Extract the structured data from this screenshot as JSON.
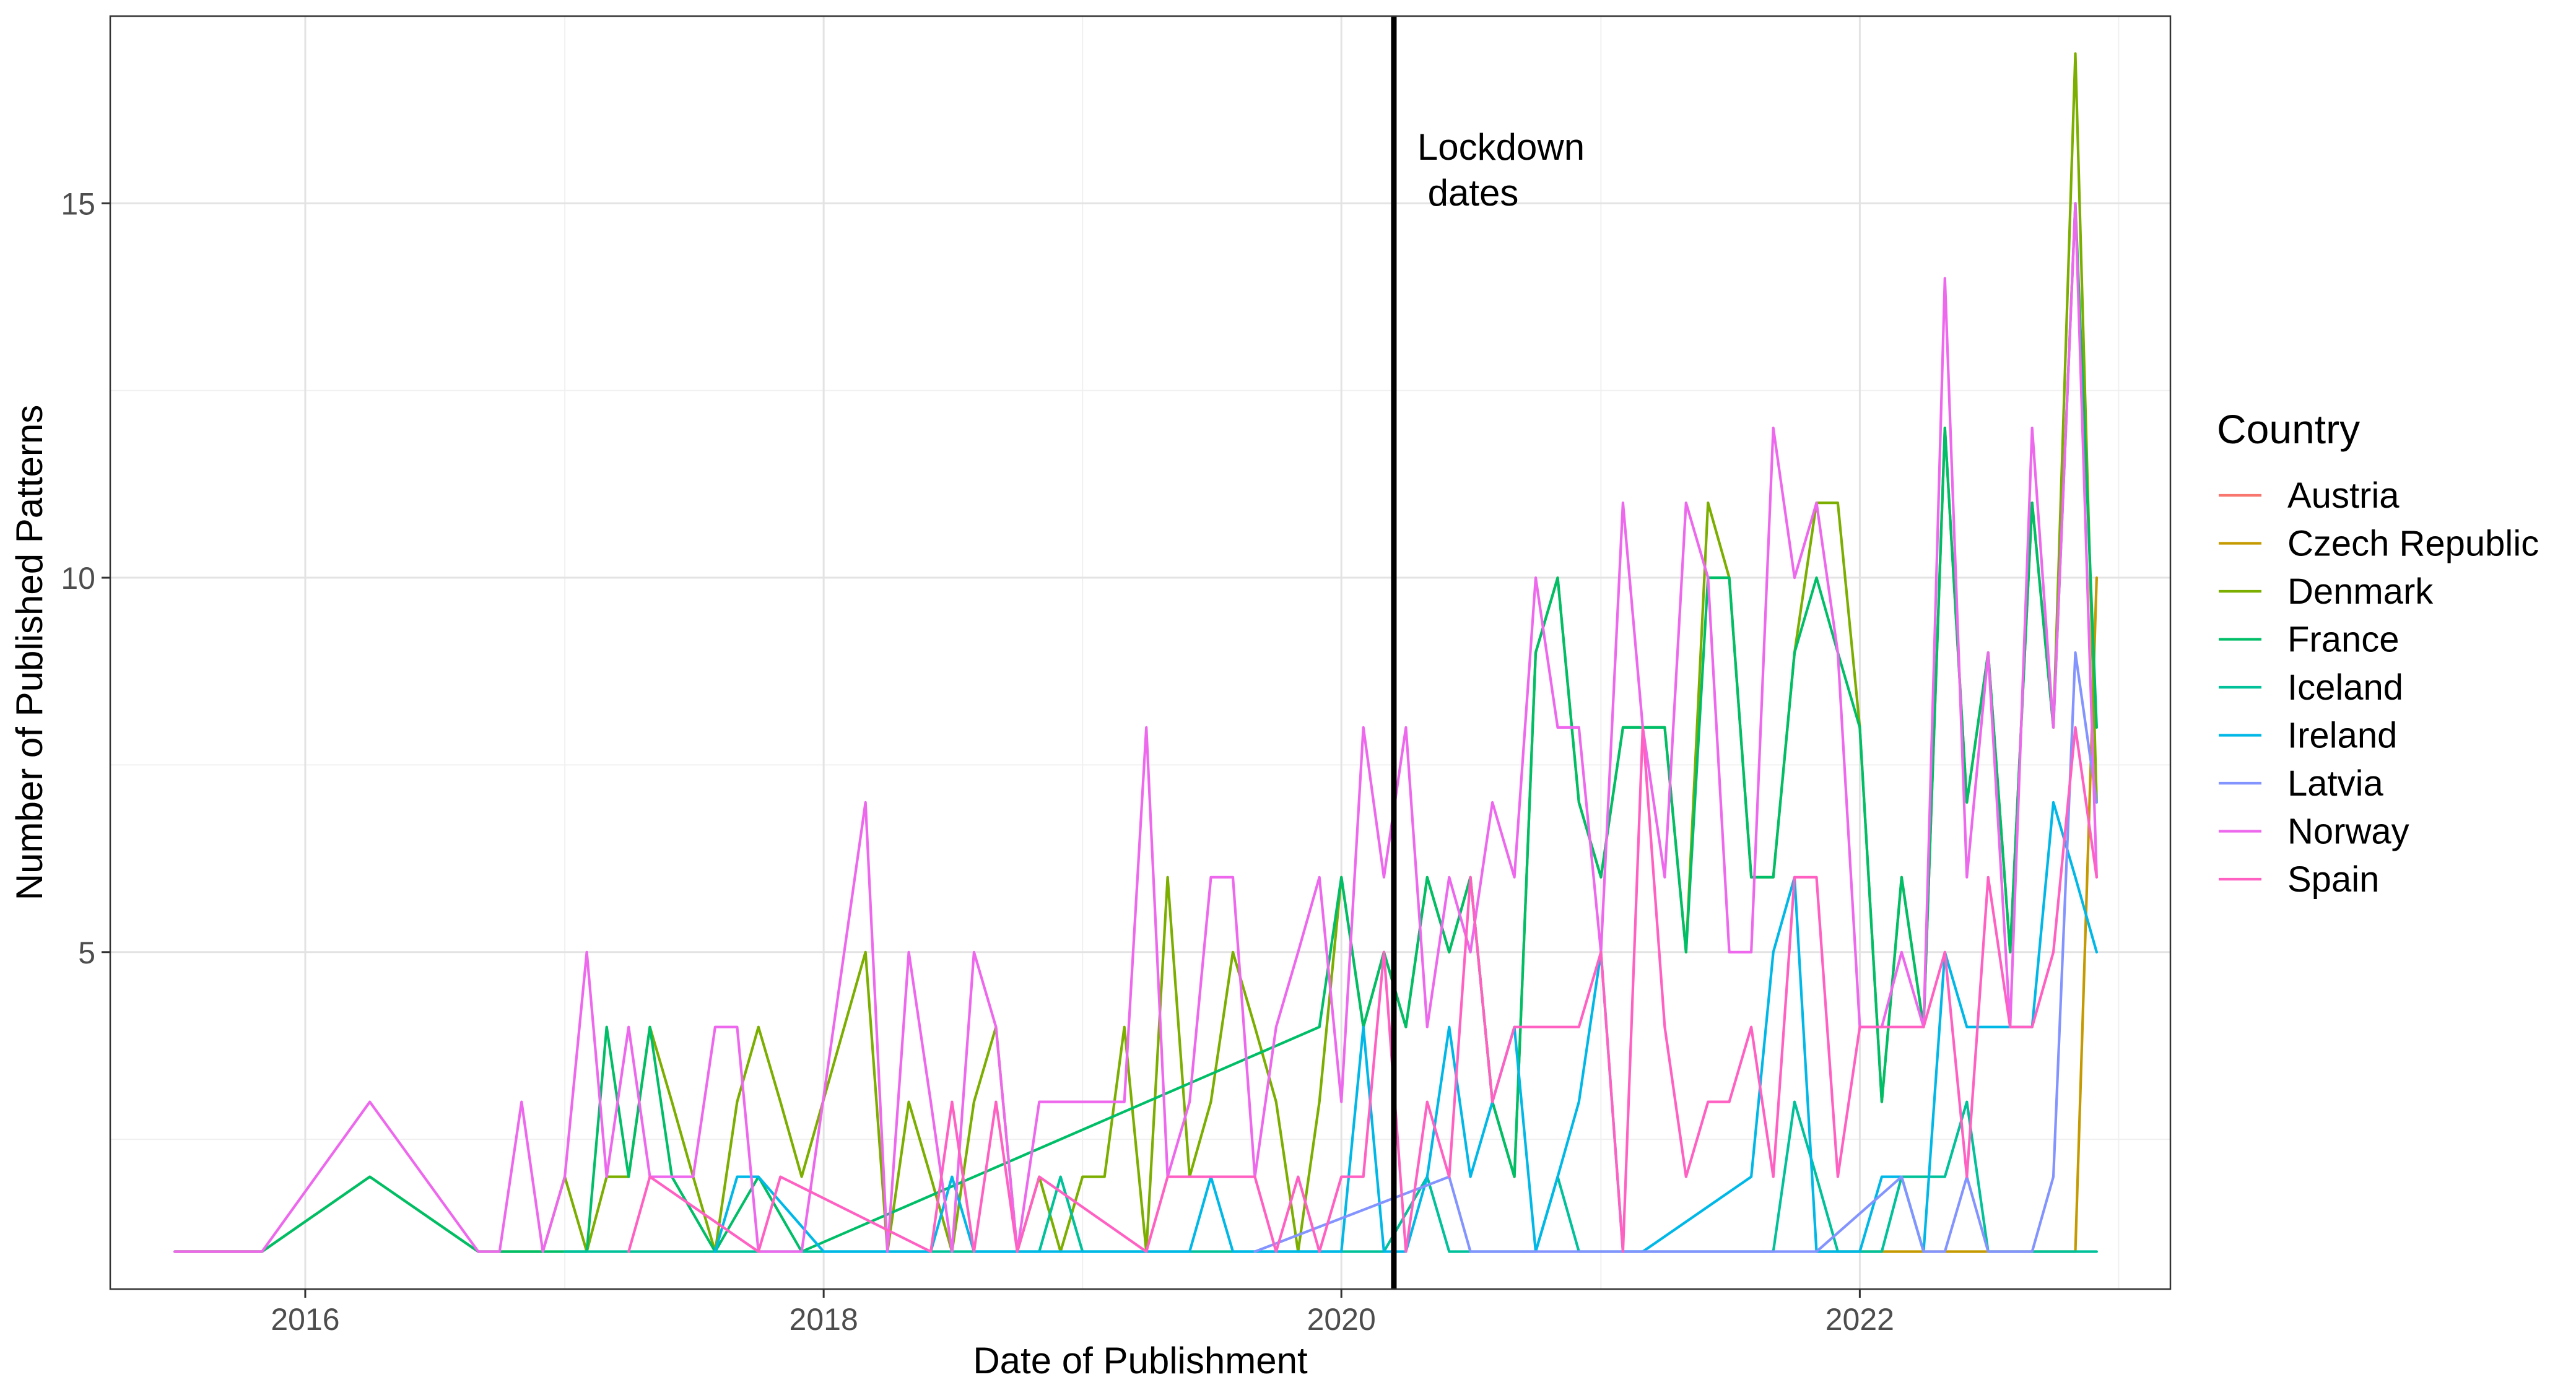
{
  "chart_data": {
    "type": "line",
    "title": "",
    "xlabel": "Date of Publishment",
    "ylabel": "Number of Published Patterns",
    "x_type": "date",
    "xlim": [
      "2015-04-01",
      "2023-03-15"
    ],
    "ylim": [
      0.5,
      17.5
    ],
    "x_ticks": [
      "2016",
      "2018",
      "2020",
      "2022"
    ],
    "y_ticks": [
      5,
      10,
      15
    ],
    "grid": true,
    "theme": "black-and-white",
    "legend": {
      "title": "Country",
      "position": "right"
    },
    "vline": {
      "x": "2020-03-15",
      "label": "Lockdown\n dates"
    },
    "series": [
      {
        "name": "Austria",
        "color": "#F8766D",
        "x": [
          "2015-07",
          "2015-08",
          "2015-09",
          "2015-10",
          "2015-11"
        ],
        "y": [
          1,
          1,
          1,
          1,
          1
        ]
      },
      {
        "name": "Czech Republic",
        "color": "#C49A00",
        "x": [
          "2021-11",
          "2021-12",
          "2022-01",
          "2022-02",
          "2022-03",
          "2022-04",
          "2022-05",
          "2022-06",
          "2022-07",
          "2022-08",
          "2022-09",
          "2022-10",
          "2022-11",
          "2022-12"
        ],
        "y": [
          1,
          1,
          1,
          1,
          1,
          1,
          1,
          1,
          1,
          1,
          1,
          1,
          1,
          10
        ]
      },
      {
        "name": "Denmark",
        "color": "#7CAE00",
        "x": [
          "2015-07",
          "2015-11",
          "2016-04",
          "2016-09",
          "2016-11",
          "2016-12",
          "2017-01",
          "2017-02",
          "2017-03",
          "2017-04",
          "2017-05",
          "2017-06",
          "2017-07",
          "2017-08",
          "2017-09",
          "2017-10",
          "2017-11",
          "2017-12",
          "2018-03",
          "2018-04",
          "2018-05",
          "2018-06",
          "2018-07",
          "2018-08",
          "2018-09",
          "2018-10",
          "2018-11",
          "2018-12",
          "2019-01",
          "2019-02",
          "2019-03",
          "2019-04",
          "2019-05",
          "2019-06",
          "2019-07",
          "2019-08",
          "2019-09",
          "2019-10",
          "2019-11",
          "2019-12",
          "2020-01",
          "2020-02",
          "2020-03",
          "2020-04",
          "2020-05",
          "2020-06",
          "2020-07",
          "2020-08",
          "2020-09",
          "2020-10",
          "2020-11",
          "2020-12",
          "2021-01",
          "2021-02",
          "2021-03",
          "2021-04",
          "2021-05",
          "2021-06",
          "2021-07",
          "2021-08",
          "2021-09",
          "2021-10",
          "2021-11",
          "2021-12",
          "2022-01",
          "2022-02",
          "2022-03",
          "2022-04",
          "2022-05",
          "2022-06",
          "2022-07",
          "2022-08",
          "2022-09",
          "2022-10",
          "2022-11",
          "2022-12"
        ],
        "y": [
          1,
          1,
          2,
          1,
          1,
          1,
          2,
          1,
          2,
          2,
          4,
          3,
          2,
          1,
          3,
          4,
          3,
          2,
          5,
          1,
          3,
          2,
          1,
          3,
          4,
          1,
          2,
          1,
          2,
          2,
          4,
          1,
          6,
          2,
          3,
          5,
          4,
          3,
          1,
          3,
          6,
          4,
          5,
          4,
          6,
          5,
          6,
          3,
          2,
          9,
          10,
          7,
          6,
          8,
          8,
          8,
          5,
          11,
          10,
          6,
          6,
          9,
          11,
          11,
          8,
          3,
          6,
          4,
          12,
          7,
          9,
          5,
          11,
          8,
          17,
          7
        ]
      },
      {
        "name": "France",
        "color": "#00BE67",
        "x": [
          "2015-07",
          "2015-11",
          "2016-04",
          "2016-09",
          "2016-11",
          "2017-02",
          "2017-03",
          "2017-04",
          "2017-05",
          "2017-06",
          "2017-08",
          "2017-10",
          "2017-12",
          "2019-12",
          "2020-01",
          "2020-02",
          "2020-03",
          "2020-04",
          "2020-05",
          "2020-06",
          "2020-07",
          "2020-08",
          "2020-09",
          "2020-10",
          "2020-11",
          "2020-12",
          "2021-01",
          "2021-02",
          "2021-03",
          "2021-04",
          "2021-05",
          "2021-06",
          "2021-07",
          "2021-08",
          "2021-09",
          "2021-10",
          "2021-11",
          "2021-12",
          "2022-01",
          "2022-02",
          "2022-03",
          "2022-04",
          "2022-05",
          "2022-06",
          "2022-07",
          "2022-08",
          "2022-09",
          "2022-10",
          "2022-11",
          "2022-12"
        ],
        "y": [
          1,
          1,
          2,
          1,
          1,
          1,
          4,
          2,
          4,
          2,
          1,
          2,
          1,
          4,
          6,
          4,
          5,
          4,
          6,
          5,
          6,
          3,
          2,
          9,
          10,
          7,
          6,
          8,
          8,
          8,
          5,
          10,
          10,
          6,
          6,
          9,
          10,
          9,
          8,
          3,
          6,
          4,
          12,
          7,
          9,
          5,
          11,
          8,
          15,
          8
        ]
      },
      {
        "name": "Iceland",
        "color": "#00C19A",
        "x": [
          "2017-01",
          "2018-10",
          "2018-11",
          "2018-12",
          "2019-01",
          "2019-02",
          "2019-03",
          "2020-03",
          "2020-05",
          "2020-06",
          "2020-07",
          "2020-08",
          "2020-09",
          "2020-10",
          "2020-11",
          "2020-12",
          "2021-01",
          "2021-09",
          "2021-10",
          "2021-11",
          "2021-12",
          "2022-01",
          "2022-02",
          "2022-03",
          "2022-04",
          "2022-05",
          "2022-06",
          "2022-07",
          "2022-08",
          "2022-09",
          "2022-10",
          "2022-11",
          "2022-12"
        ],
        "y": [
          1,
          1,
          1,
          2,
          1,
          1,
          1,
          1,
          2,
          1,
          1,
          1,
          1,
          1,
          2,
          1,
          1,
          1,
          3,
          2,
          1,
          1,
          1,
          2,
          2,
          2,
          3,
          1,
          1,
          1,
          1,
          1,
          1
        ]
      },
      {
        "name": "Ireland",
        "color": "#00B8E7",
        "x": [
          "2017-08",
          "2017-09",
          "2017-10",
          "2018-01",
          "2018-06",
          "2018-07",
          "2018-08",
          "2018-09",
          "2019-05",
          "2019-06",
          "2019-07",
          "2019-08",
          "2020-01",
          "2020-02",
          "2020-03",
          "2020-04",
          "2020-05",
          "2020-06",
          "2020-07",
          "2020-08",
          "2020-09",
          "2020-10",
          "2020-11",
          "2020-12",
          "2021-01",
          "2021-02",
          "2021-03",
          "2021-08",
          "2021-09",
          "2021-10",
          "2021-11",
          "2021-12",
          "2022-01",
          "2022-02",
          "2022-03",
          "2022-04",
          "2022-05",
          "2022-06",
          "2022-07",
          "2022-08",
          "2022-09",
          "2022-10",
          "2022-11",
          "2022-12"
        ],
        "y": [
          1,
          2,
          2,
          1,
          1,
          2,
          1,
          1,
          1,
          1,
          2,
          1,
          1,
          4,
          1,
          1,
          2,
          4,
          2,
          3,
          4,
          1,
          2,
          3,
          5,
          1,
          1,
          2,
          5,
          6,
          1,
          1,
          1,
          2,
          2,
          1,
          5,
          4,
          4,
          4,
          4,
          7,
          6,
          5
        ]
      },
      {
        "name": "Latvia",
        "color": "#8494FF",
        "x": [
          "2019-09",
          "2020-06",
          "2020-07",
          "2021-11",
          "2022-03",
          "2022-04",
          "2022-05",
          "2022-06",
          "2022-07",
          "2022-08",
          "2022-09",
          "2022-10",
          "2022-11",
          "2022-12"
        ],
        "y": [
          1,
          2,
          1,
          1,
          2,
          1,
          1,
          2,
          1,
          1,
          1,
          2,
          9,
          7
        ]
      },
      {
        "name": "Norway",
        "color": "#ED68ED",
        "x": [
          "2015-07",
          "2015-11",
          "2016-04",
          "2016-09",
          "2016-10",
          "2016-11",
          "2016-12",
          "2017-01",
          "2017-02",
          "2017-03",
          "2017-04",
          "2017-05",
          "2017-06",
          "2017-07",
          "2017-08",
          "2017-09",
          "2017-10",
          "2017-12",
          "2018-03",
          "2018-04",
          "2018-05",
          "2018-06",
          "2018-07",
          "2018-08",
          "2018-09",
          "2018-10",
          "2018-11",
          "2018-12",
          "2019-01",
          "2019-02",
          "2019-03",
          "2019-04",
          "2019-05",
          "2019-06",
          "2019-07",
          "2019-08",
          "2019-09",
          "2019-10",
          "2019-11",
          "2019-12",
          "2020-01",
          "2020-02",
          "2020-03",
          "2020-04",
          "2020-05",
          "2020-06",
          "2020-07",
          "2020-08",
          "2020-09",
          "2020-10",
          "2020-11",
          "2020-12",
          "2021-01",
          "2021-02",
          "2021-03",
          "2021-04",
          "2021-05",
          "2021-06",
          "2021-07",
          "2021-08",
          "2021-09",
          "2021-10",
          "2021-11",
          "2021-12",
          "2022-01",
          "2022-02",
          "2022-03",
          "2022-04",
          "2022-05",
          "2022-06",
          "2022-07",
          "2022-08",
          "2022-09",
          "2022-10",
          "2022-11",
          "2022-12"
        ],
        "y": [
          1,
          1,
          3,
          1,
          1,
          3,
          1,
          2,
          5,
          2,
          4,
          2,
          2,
          2,
          4,
          4,
          1,
          1,
          7,
          1,
          5,
          3,
          1,
          5,
          4,
          1,
          3,
          3,
          3,
          3,
          3,
          8,
          2,
          3,
          6,
          6,
          2,
          4,
          5,
          6,
          3,
          8,
          6,
          8,
          4,
          6,
          5,
          7,
          6,
          10,
          8,
          8,
          5,
          11,
          8,
          6,
          11,
          10,
          5,
          5,
          12,
          10,
          11,
          9,
          4,
          4,
          5,
          4,
          14,
          6,
          9,
          4,
          12,
          8,
          15,
          6
        ]
      },
      {
        "name": "Spain",
        "color": "#FF61C3",
        "x": [
          "2017-04",
          "2017-05",
          "2017-10",
          "2017-11",
          "2018-06",
          "2018-07",
          "2018-08",
          "2018-09",
          "2018-10",
          "2018-11",
          "2019-04",
          "2019-05",
          "2019-06",
          "2019-07",
          "2019-08",
          "2019-09",
          "2019-10",
          "2019-11",
          "2019-12",
          "2020-01",
          "2020-02",
          "2020-03",
          "2020-04",
          "2020-05",
          "2020-06",
          "2020-07",
          "2020-08",
          "2020-09",
          "2020-10",
          "2020-11",
          "2020-12",
          "2021-01",
          "2021-02",
          "2021-03",
          "2021-04",
          "2021-05",
          "2021-06",
          "2021-07",
          "2021-08",
          "2021-09",
          "2021-10",
          "2021-11",
          "2021-12",
          "2022-01",
          "2022-02",
          "2022-03",
          "2022-04",
          "2022-05",
          "2022-06",
          "2022-07",
          "2022-08",
          "2022-09",
          "2022-10",
          "2022-11",
          "2022-12"
        ],
        "y": [
          1,
          2,
          1,
          2,
          1,
          3,
          1,
          3,
          1,
          2,
          1,
          2,
          2,
          2,
          2,
          2,
          1,
          2,
          1,
          2,
          2,
          5,
          1,
          3,
          2,
          6,
          3,
          4,
          4,
          4,
          4,
          5,
          1,
          8,
          4,
          2,
          3,
          3,
          4,
          2,
          6,
          6,
          2,
          4,
          4,
          4,
          4,
          5,
          2,
          6,
          4,
          4,
          5,
          8,
          6
        ]
      }
    ]
  }
}
